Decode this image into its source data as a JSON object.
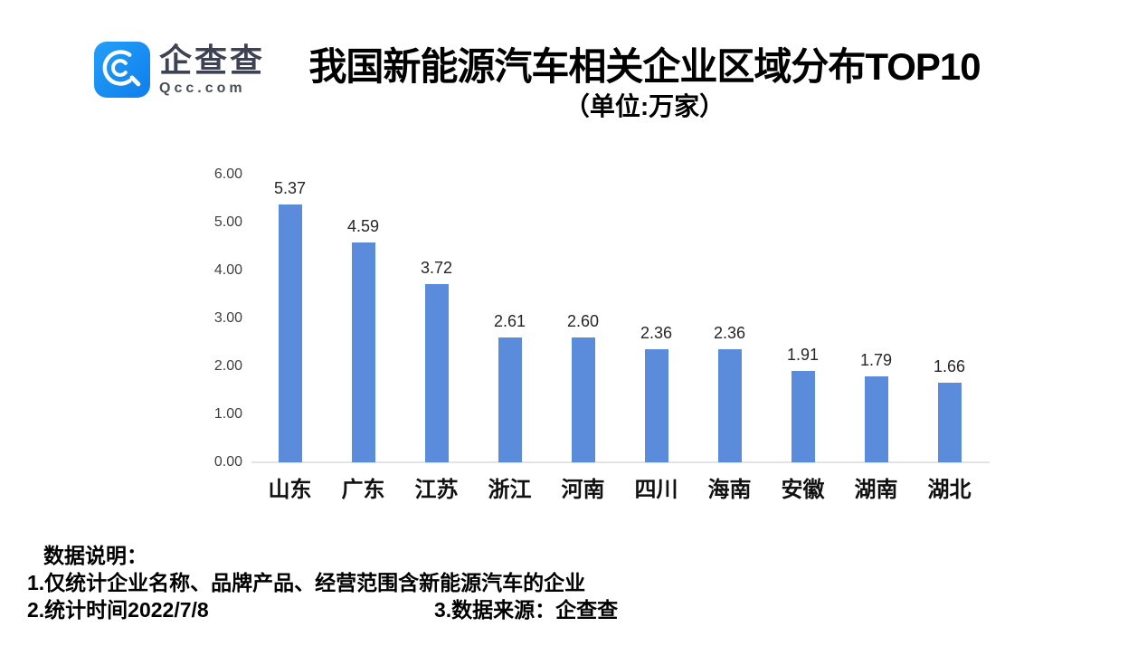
{
  "brand": {
    "name_zh": "企查查",
    "domain": "Qcc.com",
    "logo_blue": "#1588F2"
  },
  "header": {
    "title": "我国新能源汽车相关企业区域分布TOP10",
    "subtitle": "（单位:万家）"
  },
  "chart_data": {
    "type": "bar",
    "title": "我国新能源汽车相关企业区域分布TOP10",
    "unit_label": "（单位:万家）",
    "categories": [
      "山东",
      "广东",
      "江苏",
      "浙江",
      "河南",
      "四川",
      "海南",
      "安徽",
      "湖南",
      "湖北"
    ],
    "values": [
      5.37,
      4.59,
      3.72,
      2.61,
      2.6,
      2.36,
      2.36,
      1.91,
      1.79,
      1.66
    ],
    "value_labels": [
      "5.37",
      "4.59",
      "3.72",
      "2.61",
      "2.60",
      "2.36",
      "2.36",
      "1.91",
      "1.79",
      "1.66"
    ],
    "xlabel": "",
    "ylabel": "",
    "ylim": [
      0,
      6
    ],
    "yticks": [
      "6.00",
      "5.00",
      "4.00",
      "3.00",
      "2.00",
      "1.00",
      "0.00"
    ],
    "grid": false,
    "legend": null,
    "bar_color": "#5B8CDB",
    "axis_line_color": "#E3E3E3"
  },
  "footnotes": {
    "heading": "数据说明：",
    "note1": "1.仅统计企业名称、品牌产品、经营范围含新能源汽车的企业",
    "note2": "2.统计时间2022/7/8",
    "note3": "3.数据来源：企查查"
  }
}
